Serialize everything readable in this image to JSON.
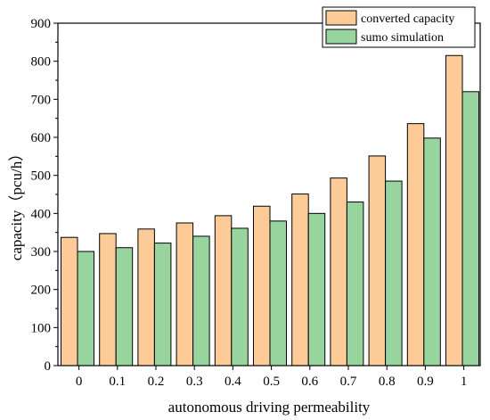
{
  "chart_data": {
    "type": "bar",
    "xlabel": "autonomous driving permeability",
    "ylabel": "capacity（pcu/h）",
    "categories": [
      "0",
      "0.1",
      "0.2",
      "0.3",
      "0.4",
      "0.5",
      "0.6",
      "0.7",
      "0.8",
      "0.9",
      "1"
    ],
    "ylim": [
      0,
      900
    ],
    "yticks": [
      "0",
      "100",
      "200",
      "300",
      "400",
      "500",
      "600",
      "700",
      "800",
      "900"
    ],
    "grid": false,
    "legend_position": "top-right",
    "series": [
      {
        "name": "converted capacity",
        "color": "#fccb97",
        "values": [
          337,
          347,
          359,
          375,
          394,
          419,
          451,
          493,
          551,
          636,
          815
        ]
      },
      {
        "name": "sumo simulation",
        "color": "#98d59e",
        "values": [
          300,
          310,
          322,
          340,
          361,
          380,
          400,
          430,
          485,
          598,
          720
        ]
      }
    ]
  }
}
